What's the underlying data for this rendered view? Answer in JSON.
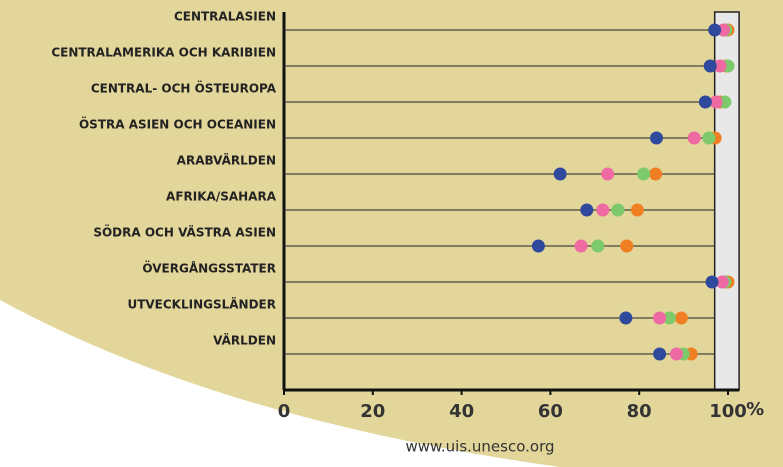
{
  "chart_data": {
    "type": "dot",
    "categories": [
      "CENTRALASIEN",
      "CENTRALAMERIKA OCH KARIBIEN",
      "CENTRAL- OCH ÖSTEUROPA",
      "ÖSTRA ASIEN OCH OCEANIEN",
      "ARABVÄRLDEN",
      "AFRIKA/SAHARA",
      "SÖDRA OCH VÄSTRA ASIEN",
      "ÖVERGÅNGSSTATER",
      "UTVECKLINGSLÄNDER",
      "VÄRLDEN"
    ],
    "series": [
      {
        "color": "#2f4a9c",
        "values": [
          97,
          96,
          94.9,
          83.9,
          62.2,
          68.2,
          57.3,
          96.4,
          77,
          84.6
        ]
      },
      {
        "color": "#ef6aa3",
        "values": [
          99,
          98.2,
          97.3,
          92.4,
          72.9,
          71.8,
          66.9,
          98.7,
          84.6,
          88.4
        ]
      },
      {
        "color": "#7dc96b",
        "values": [
          99.5,
          100,
          99.3,
          95.7,
          81,
          75.2,
          70.7,
          99.3,
          86.8,
          89.9
        ]
      },
      {
        "color": "#f07f23",
        "values": [
          100,
          99.6,
          98.2,
          97.1,
          83.7,
          79.6,
          77.2,
          100,
          89.5,
          91.7
        ]
      }
    ],
    "xlim": [
      0,
      102.5
    ],
    "xticks": [
      0,
      20,
      40,
      60,
      80,
      100
    ],
    "x_label": "%",
    "shaded_range": [
      97,
      102.5
    ],
    "source": "www.uis.unesco.org"
  }
}
